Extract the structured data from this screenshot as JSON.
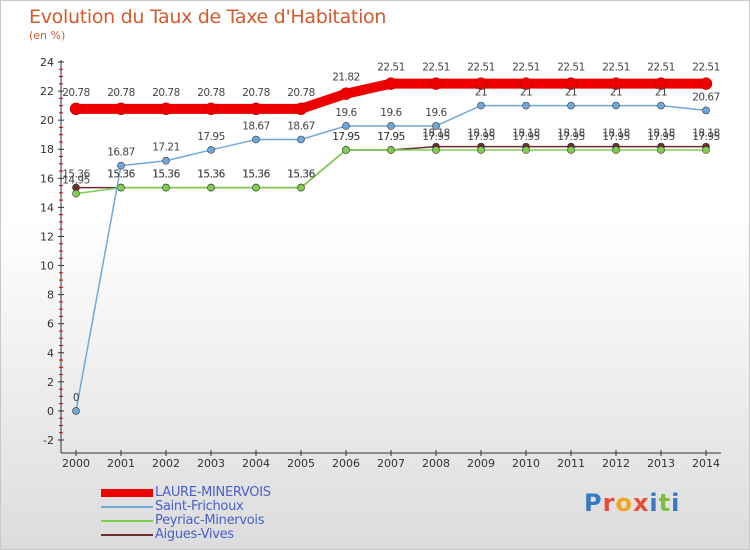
{
  "header": {
    "title": "Evolution du Taux de Taxe d'Habitation",
    "subtitle": "(en %)"
  },
  "logo": {
    "letters": [
      {
        "ch": "P",
        "color": "#3a78c2"
      },
      {
        "ch": "r",
        "color": "#e94e3a"
      },
      {
        "ch": "o",
        "color": "#f2a51e"
      },
      {
        "ch": "x",
        "color": "#e94e3a"
      },
      {
        "ch": "i",
        "color": "#3a78c2"
      },
      {
        "ch": "t",
        "color": "#7bbf3a"
      },
      {
        "ch": "i",
        "color": "#3a78c2"
      }
    ]
  },
  "chart_data": {
    "type": "line",
    "title": "Evolution du Taux de Taxe d'Habitation",
    "subtitle": "(en %)",
    "xlabel": "",
    "ylabel": "",
    "ylim": [
      -2,
      24
    ],
    "yticks": [
      -2,
      0,
      2,
      4,
      6,
      8,
      10,
      12,
      14,
      16,
      18,
      20,
      22,
      24
    ],
    "grid": false,
    "legend_position": "bottom-left",
    "categories": [
      "2000",
      "2001",
      "2002",
      "2003",
      "2004",
      "2005",
      "2006",
      "2007",
      "2008",
      "2009",
      "2010",
      "2011",
      "2012",
      "2013",
      "2014"
    ],
    "series": [
      {
        "name": "LAURE-MINERVOIS",
        "color": "#ee0000",
        "values": [
          20.78,
          20.78,
          20.78,
          20.78,
          20.78,
          20.78,
          21.82,
          22.51,
          22.51,
          22.51,
          22.51,
          22.51,
          22.51,
          22.51,
          22.51
        ]
      },
      {
        "name": "Saint-Frichoux",
        "color": "#6fa8dc",
        "values": [
          0,
          16.87,
          17.21,
          17.95,
          18.67,
          18.67,
          19.6,
          19.6,
          19.6,
          21,
          21,
          21,
          21,
          21,
          20.67
        ]
      },
      {
        "name": "Peyriac-Minervois",
        "color": "#7fcf4f",
        "values": [
          14.95,
          15.36,
          15.36,
          15.36,
          15.36,
          15.36,
          17.95,
          17.95,
          17.95,
          17.95,
          17.95,
          17.95,
          17.95,
          17.95,
          17.95
        ]
      },
      {
        "name": "Aigues-Vives",
        "color": "#6b2f2f",
        "values": [
          15.36,
          15.36,
          15.36,
          15.36,
          15.36,
          15.36,
          17.95,
          17.95,
          18.18,
          18.18,
          18.18,
          18.18,
          18.18,
          18.18,
          18.18
        ]
      }
    ],
    "point_labels": [
      [
        "20.78",
        "20.78",
        "20.78",
        "20.78",
        "20.78",
        "20.78",
        "21.82",
        "22.51",
        "22.51",
        "22.51",
        "22.51",
        "22.51",
        "22.51",
        "22.51",
        "22.51"
      ],
      [
        "0",
        "16.87",
        "17.21",
        "17.95",
        "18.67",
        "18.67",
        "19.6",
        "19.6",
        "19.6",
        "21",
        "21",
        "21",
        "21",
        "21",
        "20.67"
      ],
      [
        "14.95",
        "15.36",
        "15.36",
        "15.36",
        "15.36",
        "15.36",
        "17.95",
        "17.95",
        "17.95",
        "17.95",
        "17.95",
        "17.95",
        "17.95",
        "17.95",
        "17.95"
      ],
      [
        "15.36",
        "15.36",
        "15.36",
        "15.36",
        "15.36",
        "15.36",
        "17.95",
        "17.95",
        "18.18",
        "18.18",
        "18.18",
        "18.18",
        "18.18",
        "18.18",
        "18.18"
      ]
    ]
  }
}
